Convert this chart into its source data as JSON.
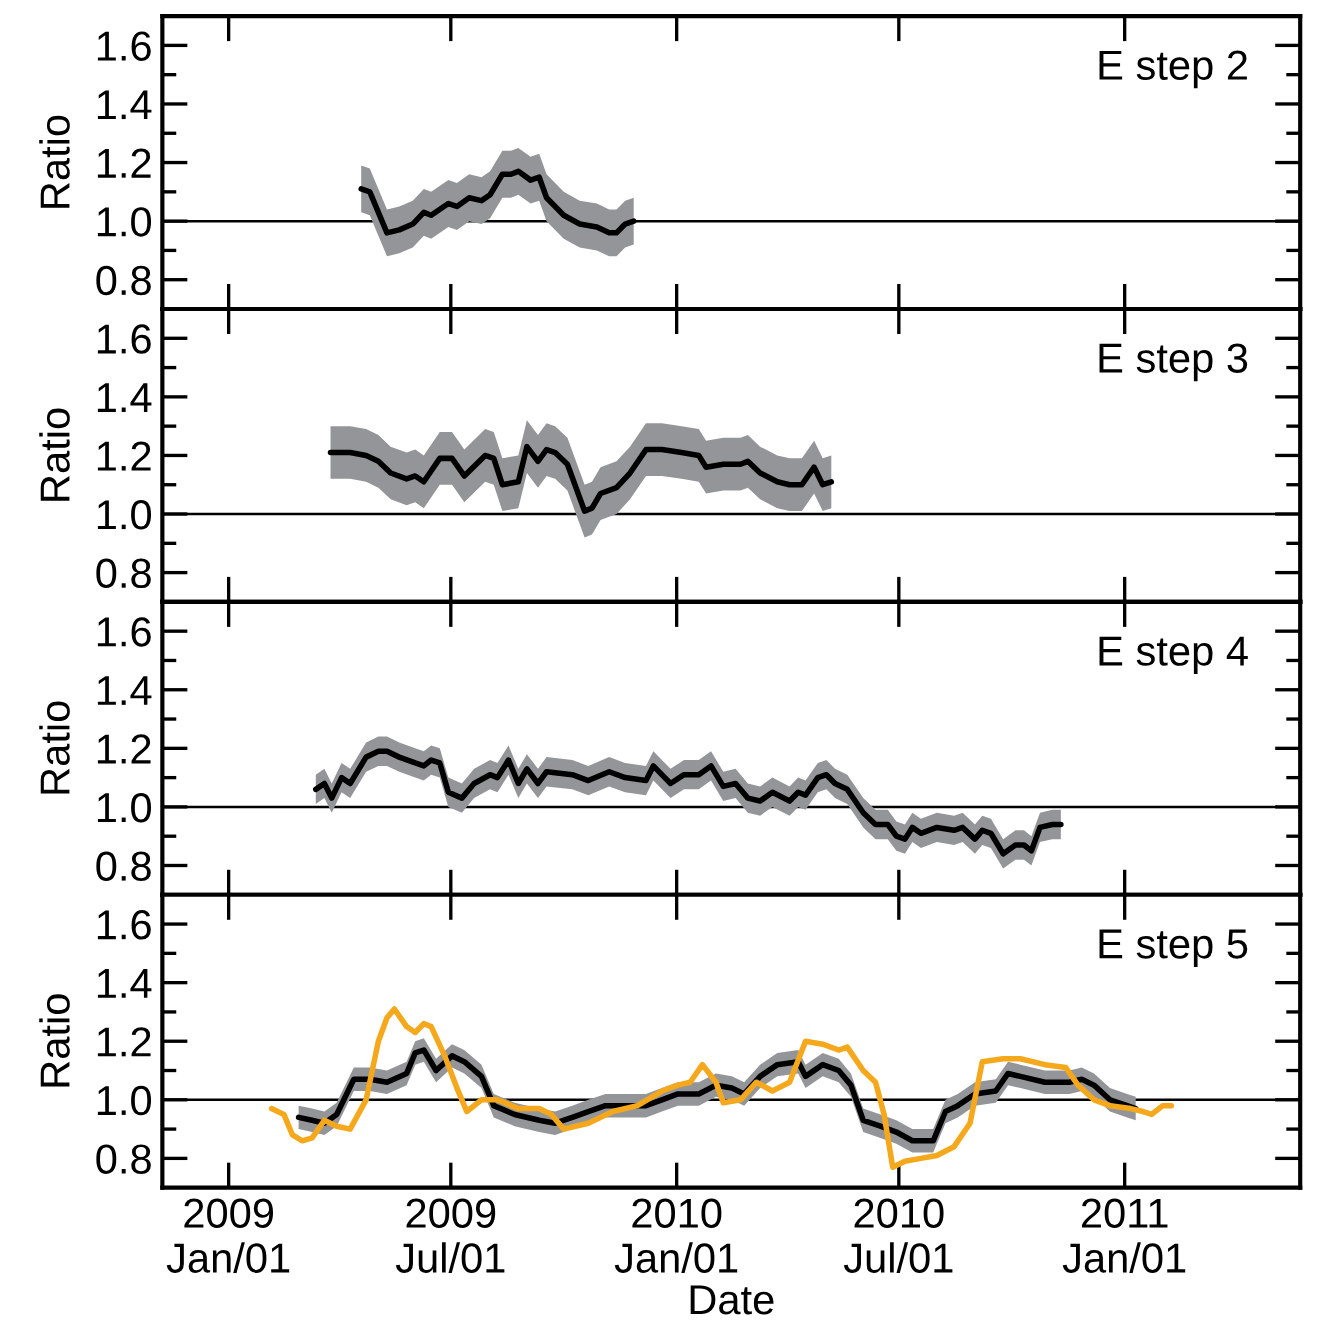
{
  "chart_data": [
    {
      "type": "line",
      "ylabel": "Ratio",
      "annotations": [
        "E step 2"
      ],
      "tick_labels": "y",
      "xlim": [
        "2008-11-08",
        "2011-05-24"
      ],
      "ylim": [
        0.7,
        1.7
      ],
      "xticks": [
        {
          "value": "2009-01-01",
          "label": null
        },
        {
          "value": "2009-07-01",
          "label": null
        },
        {
          "value": "2010-01-01",
          "label": null
        },
        {
          "value": "2010-07-01",
          "label": null
        },
        {
          "value": "2011-01-01",
          "label": null
        }
      ],
      "yticks": [
        {
          "value": 0.8,
          "label": "0.8"
        },
        {
          "value": 0.9,
          "label": null
        },
        {
          "value": 1.0,
          "label": "1.0"
        },
        {
          "value": 1.1,
          "label": null
        },
        {
          "value": 1.2,
          "label": "1.2"
        },
        {
          "value": 1.3,
          "label": null
        },
        {
          "value": 1.4,
          "label": "1.4"
        },
        {
          "value": 1.5,
          "label": null
        },
        {
          "value": 1.6,
          "label": "1.6"
        }
      ],
      "ref_lines": [
        {
          "axis": "y",
          "value": 1.0,
          "color": "#000000"
        }
      ],
      "series": [
        {
          "color": "#000000",
          "x": [
            "2009-04-19",
            "2009-04-26",
            "2009-05-10",
            "2009-05-20",
            "2009-05-31",
            "2009-06-09",
            "2009-06-15",
            "2009-06-29",
            "2009-07-06",
            "2009-07-16",
            "2009-07-26",
            "2009-08-02",
            "2009-08-12",
            "2009-08-19",
            "2009-08-25",
            "2009-09-04",
            "2009-09-11",
            "2009-09-17",
            "2009-10-01",
            "2009-10-14",
            "2009-10-28",
            "2009-11-07",
            "2009-11-13",
            "2009-11-20",
            "2009-11-27"
          ],
          "values": [
            1.11,
            1.1,
            0.96,
            0.97,
            0.99,
            1.03,
            1.02,
            1.06,
            1.05,
            1.08,
            1.07,
            1.09,
            1.16,
            1.16,
            1.17,
            1.14,
            1.15,
            1.08,
            1.02,
            0.99,
            0.98,
            0.96,
            0.96,
            0.99,
            1.0
          ],
          "lower": [
            1.03,
            1.02,
            0.88,
            0.89,
            0.91,
            0.95,
            0.94,
            0.98,
            0.97,
            1.0,
            0.99,
            1.01,
            1.08,
            1.08,
            1.09,
            1.06,
            1.07,
            1.0,
            0.94,
            0.91,
            0.9,
            0.88,
            0.88,
            0.91,
            0.92
          ],
          "upper": [
            1.19,
            1.18,
            1.04,
            1.05,
            1.07,
            1.11,
            1.1,
            1.14,
            1.13,
            1.16,
            1.15,
            1.17,
            1.24,
            1.24,
            1.25,
            1.22,
            1.23,
            1.16,
            1.1,
            1.07,
            1.06,
            1.04,
            1.04,
            1.07,
            1.08
          ]
        }
      ]
    },
    {
      "type": "line",
      "ylabel": "Ratio",
      "annotations": [
        "E step 3"
      ],
      "tick_labels": "y",
      "xlim": [
        "2008-11-08",
        "2011-05-24"
      ],
      "ylim": [
        0.7,
        1.7
      ],
      "xticks": [
        {
          "value": "2009-01-01",
          "label": null
        },
        {
          "value": "2009-07-01",
          "label": null
        },
        {
          "value": "2010-01-01",
          "label": null
        },
        {
          "value": "2010-07-01",
          "label": null
        },
        {
          "value": "2011-01-01",
          "label": null
        }
      ],
      "yticks": [
        {
          "value": 0.8,
          "label": "0.8"
        },
        {
          "value": 0.9,
          "label": null
        },
        {
          "value": 1.0,
          "label": "1.0"
        },
        {
          "value": 1.1,
          "label": null
        },
        {
          "value": 1.2,
          "label": "1.2"
        },
        {
          "value": 1.3,
          "label": null
        },
        {
          "value": 1.4,
          "label": "1.4"
        },
        {
          "value": 1.5,
          "label": null
        },
        {
          "value": 1.6,
          "label": "1.6"
        }
      ],
      "ref_lines": [
        {
          "axis": "y",
          "value": 1.0,
          "color": "#000000"
        }
      ],
      "series": [
        {
          "color": "#000000",
          "x": [
            "2009-03-25",
            "2009-04-10",
            "2009-04-23",
            "2009-05-03",
            "2009-05-13",
            "2009-05-26",
            "2009-06-02",
            "2009-06-09",
            "2009-06-22",
            "2009-07-02",
            "2009-07-12",
            "2009-07-29",
            "2009-08-05",
            "2009-08-12",
            "2009-08-25",
            "2009-09-01",
            "2009-09-10",
            "2009-09-17",
            "2009-09-24",
            "2009-10-04",
            "2009-10-18",
            "2009-10-24",
            "2009-10-31",
            "2009-11-13",
            "2009-11-24",
            "2009-12-07",
            "2009-12-20",
            "2010-01-05",
            "2010-01-19",
            "2010-01-25",
            "2010-02-08",
            "2010-02-22",
            "2010-02-28",
            "2010-03-10",
            "2010-03-24",
            "2010-04-03",
            "2010-04-13",
            "2010-04-23",
            "2010-04-30",
            "2010-05-07"
          ],
          "values": [
            1.21,
            1.21,
            1.2,
            1.18,
            1.14,
            1.12,
            1.13,
            1.11,
            1.19,
            1.19,
            1.13,
            1.2,
            1.19,
            1.1,
            1.11,
            1.23,
            1.18,
            1.22,
            1.21,
            1.17,
            1.01,
            1.02,
            1.07,
            1.09,
            1.14,
            1.22,
            1.22,
            1.21,
            1.2,
            1.16,
            1.17,
            1.17,
            1.18,
            1.14,
            1.11,
            1.1,
            1.1,
            1.16,
            1.1,
            1.11
          ],
          "lower": [
            1.12,
            1.12,
            1.11,
            1.09,
            1.05,
            1.03,
            1.04,
            1.02,
            1.1,
            1.1,
            1.04,
            1.11,
            1.1,
            1.01,
            1.02,
            1.14,
            1.09,
            1.13,
            1.12,
            1.08,
            0.92,
            0.93,
            0.98,
            1.0,
            1.05,
            1.13,
            1.13,
            1.12,
            1.11,
            1.07,
            1.08,
            1.08,
            1.09,
            1.05,
            1.02,
            1.01,
            1.01,
            1.07,
            1.01,
            1.02
          ],
          "upper": [
            1.3,
            1.3,
            1.29,
            1.27,
            1.23,
            1.21,
            1.22,
            1.2,
            1.28,
            1.28,
            1.22,
            1.29,
            1.28,
            1.19,
            1.2,
            1.32,
            1.27,
            1.31,
            1.3,
            1.26,
            1.1,
            1.11,
            1.16,
            1.18,
            1.23,
            1.31,
            1.31,
            1.3,
            1.29,
            1.25,
            1.26,
            1.26,
            1.27,
            1.23,
            1.2,
            1.19,
            1.19,
            1.25,
            1.19,
            1.2
          ]
        }
      ]
    },
    {
      "type": "line",
      "ylabel": "Ratio",
      "annotations": [
        "E step 4"
      ],
      "tick_labels": "y",
      "xlim": [
        "2008-11-08",
        "2011-05-24"
      ],
      "ylim": [
        0.7,
        1.7
      ],
      "xticks": [
        {
          "value": "2009-01-01",
          "label": null
        },
        {
          "value": "2009-07-01",
          "label": null
        },
        {
          "value": "2010-01-01",
          "label": null
        },
        {
          "value": "2010-07-01",
          "label": null
        },
        {
          "value": "2011-01-01",
          "label": null
        }
      ],
      "yticks": [
        {
          "value": 0.8,
          "label": "0.8"
        },
        {
          "value": 0.9,
          "label": null
        },
        {
          "value": 1.0,
          "label": "1.0"
        },
        {
          "value": 1.1,
          "label": null
        },
        {
          "value": 1.2,
          "label": "1.2"
        },
        {
          "value": 1.3,
          "label": null
        },
        {
          "value": 1.4,
          "label": "1.4"
        },
        {
          "value": 1.5,
          "label": null
        },
        {
          "value": 1.6,
          "label": "1.6"
        }
      ],
      "ref_lines": [
        {
          "axis": "y",
          "value": 1.0,
          "color": "#000000"
        }
      ],
      "series": [
        {
          "color": "#000000",
          "x": [
            "2009-03-13",
            "2009-03-20",
            "2009-03-26",
            "2009-04-03",
            "2009-04-10",
            "2009-04-23",
            "2009-05-03",
            "2009-05-10",
            "2009-05-20",
            "2009-06-02",
            "2009-06-09",
            "2009-06-15",
            "2009-06-22",
            "2009-06-29",
            "2009-07-10",
            "2009-07-20",
            "2009-08-02",
            "2009-08-08",
            "2009-08-17",
            "2009-08-25",
            "2009-09-01",
            "2009-09-10",
            "2009-09-17",
            "2009-10-08",
            "2009-10-21",
            "2009-11-07",
            "2009-11-20",
            "2009-12-07",
            "2009-12-13",
            "2009-12-27",
            "2010-01-07",
            "2010-01-19",
            "2010-01-29",
            "2010-02-08",
            "2010-02-18",
            "2010-02-28",
            "2010-03-10",
            "2010-03-20",
            "2010-04-03",
            "2010-04-10",
            "2010-04-16",
            "2010-04-26",
            "2010-05-03",
            "2010-05-10",
            "2010-05-20",
            "2010-06-02",
            "2010-06-12",
            "2010-06-22",
            "2010-06-29",
            "2010-07-06",
            "2010-07-12",
            "2010-07-19",
            "2010-08-01",
            "2010-08-15",
            "2010-08-22",
            "2010-09-01",
            "2010-09-07",
            "2010-09-14",
            "2010-09-24",
            "2010-10-04",
            "2010-10-11",
            "2010-10-17",
            "2010-10-24",
            "2010-11-03",
            "2010-11-10"
          ],
          "values": [
            1.06,
            1.08,
            1.03,
            1.1,
            1.08,
            1.17,
            1.19,
            1.19,
            1.17,
            1.15,
            1.14,
            1.16,
            1.15,
            1.05,
            1.03,
            1.08,
            1.11,
            1.1,
            1.16,
            1.08,
            1.13,
            1.08,
            1.12,
            1.11,
            1.09,
            1.12,
            1.1,
            1.09,
            1.14,
            1.08,
            1.11,
            1.11,
            1.14,
            1.07,
            1.08,
            1.03,
            1.02,
            1.05,
            1.02,
            1.05,
            1.04,
            1.1,
            1.11,
            1.08,
            1.06,
            0.98,
            0.94,
            0.94,
            0.9,
            0.89,
            0.93,
            0.91,
            0.93,
            0.92,
            0.93,
            0.89,
            0.92,
            0.91,
            0.84,
            0.87,
            0.87,
            0.85,
            0.93,
            0.94,
            0.94
          ],
          "lower": [
            1.01,
            1.03,
            0.98,
            1.05,
            1.03,
            1.12,
            1.14,
            1.14,
            1.12,
            1.1,
            1.09,
            1.11,
            1.1,
            1.0,
            0.98,
            1.03,
            1.06,
            1.05,
            1.11,
            1.03,
            1.08,
            1.03,
            1.07,
            1.06,
            1.04,
            1.07,
            1.05,
            1.04,
            1.09,
            1.03,
            1.06,
            1.06,
            1.09,
            1.02,
            1.03,
            0.98,
            0.97,
            1.0,
            0.97,
            1.0,
            0.99,
            1.05,
            1.06,
            1.03,
            1.01,
            0.93,
            0.89,
            0.89,
            0.85,
            0.84,
            0.88,
            0.86,
            0.88,
            0.87,
            0.88,
            0.84,
            0.87,
            0.86,
            0.79,
            0.82,
            0.82,
            0.8,
            0.88,
            0.89,
            0.89
          ],
          "upper": [
            1.11,
            1.13,
            1.08,
            1.15,
            1.13,
            1.22,
            1.24,
            1.24,
            1.22,
            1.2,
            1.19,
            1.21,
            1.2,
            1.1,
            1.08,
            1.13,
            1.16,
            1.15,
            1.21,
            1.13,
            1.18,
            1.13,
            1.17,
            1.16,
            1.14,
            1.17,
            1.15,
            1.14,
            1.19,
            1.13,
            1.16,
            1.16,
            1.19,
            1.12,
            1.13,
            1.08,
            1.07,
            1.1,
            1.07,
            1.1,
            1.09,
            1.15,
            1.16,
            1.13,
            1.11,
            1.03,
            0.99,
            0.99,
            0.95,
            0.94,
            0.98,
            0.96,
            0.98,
            0.97,
            0.98,
            0.94,
            0.97,
            0.96,
            0.89,
            0.92,
            0.92,
            0.9,
            0.98,
            0.99,
            0.99
          ]
        }
      ]
    },
    {
      "type": "line",
      "ylabel": "Ratio",
      "xlabel": "Date",
      "annotations": [
        "E step 5"
      ],
      "xlim": [
        "2008-11-08",
        "2011-05-24"
      ],
      "ylim": [
        0.7,
        1.7
      ],
      "xticks": [
        {
          "value": "2009-01-01",
          "label": "2009\nJan/01"
        },
        {
          "value": "2009-07-01",
          "label": "2009\nJul/01"
        },
        {
          "value": "2010-01-01",
          "label": "2010\nJan/01"
        },
        {
          "value": "2010-07-01",
          "label": "2010\nJul/01"
        },
        {
          "value": "2011-01-01",
          "label": "2011\nJan/01"
        }
      ],
      "yticks": [
        {
          "value": 0.8,
          "label": "0.8"
        },
        {
          "value": 0.9,
          "label": null
        },
        {
          "value": 1.0,
          "label": "1.0"
        },
        {
          "value": 1.1,
          "label": null
        },
        {
          "value": 1.2,
          "label": "1.2"
        },
        {
          "value": 1.3,
          "label": null
        },
        {
          "value": 1.4,
          "label": "1.4"
        },
        {
          "value": 1.5,
          "label": null
        },
        {
          "value": 1.6,
          "label": "1.6"
        }
      ],
      "ref_lines": [
        {
          "axis": "y",
          "value": 1.0,
          "color": "#000000"
        }
      ],
      "series": [
        {
          "color": "#000000",
          "x": [
            "2009-02-27",
            "2009-03-10",
            "2009-03-20",
            "2009-03-30",
            "2009-04-13",
            "2009-04-26",
            "2009-05-10",
            "2009-05-26",
            "2009-06-02",
            "2009-06-09",
            "2009-06-19",
            "2009-07-02",
            "2009-07-12",
            "2009-07-26",
            "2009-08-05",
            "2009-08-22",
            "2009-09-11",
            "2009-09-24",
            "2009-10-08",
            "2009-10-21",
            "2009-11-04",
            "2009-11-24",
            "2009-12-07",
            "2009-12-20",
            "2010-01-02",
            "2010-01-19",
            "2010-02-02",
            "2010-02-15",
            "2010-02-25",
            "2010-03-10",
            "2010-03-24",
            "2010-04-10",
            "2010-04-16",
            "2010-04-30",
            "2010-05-13",
            "2010-05-23",
            "2010-06-02",
            "2010-06-16",
            "2010-06-29",
            "2010-07-12",
            "2010-07-29",
            "2010-08-08",
            "2010-08-18",
            "2010-09-01",
            "2010-09-18",
            "2010-09-28",
            "2010-10-08",
            "2010-10-28",
            "2010-11-17",
            "2010-11-27",
            "2010-12-07",
            "2010-12-20",
            "2011-01-03",
            "2011-01-10"
          ],
          "values": [
            0.94,
            0.93,
            0.92,
            0.95,
            1.07,
            1.07,
            1.06,
            1.09,
            1.16,
            1.17,
            1.1,
            1.15,
            1.13,
            1.08,
            0.98,
            0.95,
            0.93,
            0.92,
            0.94,
            0.96,
            0.98,
            0.98,
            0.98,
            1.0,
            1.02,
            1.02,
            1.05,
            1.04,
            1.02,
            1.08,
            1.12,
            1.13,
            1.08,
            1.12,
            1.1,
            1.05,
            0.93,
            0.91,
            0.89,
            0.86,
            0.86,
            0.96,
            0.98,
            1.02,
            1.03,
            1.09,
            1.08,
            1.06,
            1.06,
            1.07,
            1.05,
            1.0,
            0.98,
            0.97
          ],
          "lower": [
            0.9,
            0.89,
            0.88,
            0.91,
            1.03,
            1.03,
            1.02,
            1.05,
            1.12,
            1.13,
            1.06,
            1.11,
            1.09,
            1.04,
            0.94,
            0.91,
            0.89,
            0.88,
            0.9,
            0.92,
            0.94,
            0.94,
            0.94,
            0.96,
            0.98,
            0.98,
            1.01,
            1.0,
            0.98,
            1.04,
            1.08,
            1.09,
            1.04,
            1.08,
            1.06,
            1.01,
            0.89,
            0.87,
            0.85,
            0.82,
            0.82,
            0.92,
            0.94,
            0.98,
            0.99,
            1.05,
            1.04,
            1.02,
            1.02,
            1.03,
            1.01,
            0.96,
            0.94,
            0.93
          ],
          "upper": [
            0.98,
            0.97,
            0.96,
            0.99,
            1.11,
            1.11,
            1.1,
            1.13,
            1.2,
            1.21,
            1.14,
            1.19,
            1.17,
            1.12,
            1.02,
            0.99,
            0.97,
            0.96,
            0.98,
            1.0,
            1.02,
            1.02,
            1.02,
            1.04,
            1.06,
            1.06,
            1.09,
            1.08,
            1.06,
            1.12,
            1.16,
            1.17,
            1.12,
            1.16,
            1.14,
            1.09,
            0.97,
            0.95,
            0.93,
            0.9,
            0.9,
            1.0,
            1.02,
            1.06,
            1.07,
            1.13,
            1.12,
            1.1,
            1.1,
            1.11,
            1.09,
            1.04,
            1.02,
            1.01
          ]
        },
        {
          "color": "#f5a81c",
          "x": [
            "2009-02-05",
            "2009-02-15",
            "2009-02-22",
            "2009-03-02",
            "2009-03-10",
            "2009-03-20",
            "2009-03-30",
            "2009-04-10",
            "2009-04-23",
            "2009-05-03",
            "2009-05-10",
            "2009-05-16",
            "2009-05-26",
            "2009-06-02",
            "2009-06-09",
            "2009-06-15",
            "2009-06-26",
            "2009-07-06",
            "2009-07-14",
            "2009-07-26",
            "2009-08-08",
            "2009-08-25",
            "2009-09-11",
            "2009-09-21",
            "2009-10-01",
            "2009-10-21",
            "2009-11-10",
            "2009-11-30",
            "2009-12-20",
            "2010-01-02",
            "2010-01-12",
            "2010-01-22",
            "2010-02-02",
            "2010-02-08",
            "2010-02-22",
            "2010-03-07",
            "2010-03-20",
            "2010-04-03",
            "2010-04-16",
            "2010-04-30",
            "2010-05-13",
            "2010-05-20",
            "2010-06-02",
            "2010-06-12",
            "2010-06-19",
            "2010-06-26",
            "2010-07-06",
            "2010-07-19",
            "2010-08-01",
            "2010-08-15",
            "2010-08-28",
            "2010-09-07",
            "2010-09-24",
            "2010-10-08",
            "2010-10-28",
            "2010-11-14",
            "2010-11-24",
            "2010-12-07",
            "2010-12-20",
            "2011-01-06",
            "2011-01-16",
            "2011-01-23",
            "2011-02-01",
            "2011-02-08"
          ],
          "values": [
            0.97,
            0.95,
            0.88,
            0.86,
            0.87,
            0.93,
            0.91,
            0.9,
            1.0,
            1.2,
            1.28,
            1.31,
            1.25,
            1.23,
            1.26,
            1.25,
            1.15,
            1.04,
            0.96,
            1.0,
            1.0,
            0.97,
            0.97,
            0.95,
            0.9,
            0.92,
            0.96,
            0.98,
            1.03,
            1.05,
            1.06,
            1.12,
            1.06,
            0.99,
            1.0,
            1.06,
            1.03,
            1.06,
            1.2,
            1.19,
            1.17,
            1.18,
            1.1,
            1.06,
            0.95,
            0.77,
            0.79,
            0.8,
            0.81,
            0.84,
            0.92,
            1.13,
            1.14,
            1.14,
            1.12,
            1.11,
            1.05,
            1.0,
            0.98,
            0.97,
            0.96,
            0.95,
            0.98,
            0.98
          ]
        }
      ]
    }
  ]
}
